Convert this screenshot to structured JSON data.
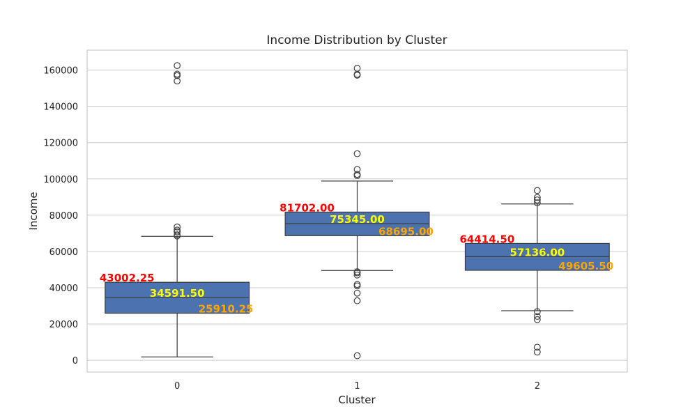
{
  "chart_data": {
    "type": "box",
    "title": "Income Distribution by Cluster",
    "xlabel": "Cluster",
    "ylabel": "Income",
    "ylim": [
      -6500,
      171000
    ],
    "yticks": [
      0,
      20000,
      40000,
      60000,
      80000,
      100000,
      120000,
      140000,
      160000
    ],
    "ytick_labels": [
      "0",
      "20000",
      "40000",
      "60000",
      "80000",
      "100000",
      "120000",
      "140000",
      "160000"
    ],
    "grid": true,
    "box_color": "#4c72b0",
    "annotation_colors": {
      "q3": "#ff0000",
      "median": "#ffff00",
      "q1": "#ffa500"
    },
    "categories": [
      "0",
      "1",
      "2"
    ],
    "boxes": [
      {
        "category": "0",
        "q1": 25910.25,
        "median": 34591.5,
        "q3": 43002.25,
        "whisker_low": 1800,
        "whisker_high": 68300,
        "q1_label": "25910.25",
        "median_label": "34591.50",
        "q3_label": "43002.25",
        "fliers": [
          68500,
          69200,
          70800,
          71800,
          73500,
          154000,
          157000,
          157800,
          162500
        ]
      },
      {
        "category": "1",
        "q1": 68695.0,
        "median": 75345.0,
        "q3": 81702.0,
        "whisker_low": 49500,
        "whisker_high": 98800,
        "q1_label": "68695.00",
        "median_label": "75345.00",
        "q3_label": "81702.00",
        "fliers": [
          2500,
          32800,
          37000,
          41000,
          41800,
          47000,
          48200,
          48800,
          101800,
          102500,
          105200,
          113900,
          157200,
          157700,
          161000
        ]
      },
      {
        "category": "2",
        "q1": 49605.5,
        "median": 57136.0,
        "q3": 64414.5,
        "whisker_low": 27300,
        "whisker_high": 86200,
        "q1_label": "49605.50",
        "median_label": "57136.00",
        "q3_label": "64414.50",
        "fliers": [
          4500,
          7200,
          22400,
          24200,
          26800,
          86800,
          88400,
          89800,
          93600
        ]
      }
    ]
  }
}
